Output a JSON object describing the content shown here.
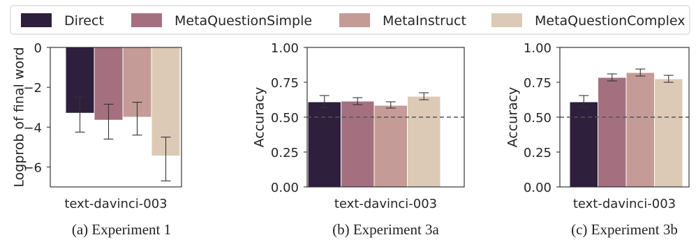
{
  "legend": [
    {
      "label": "Direct",
      "color": "#2e1f3d"
    },
    {
      "label": "MetaQuestionSimple",
      "color": "#a4707f"
    },
    {
      "label": "MetaInstruct",
      "color": "#c49b96"
    },
    {
      "label": "MetaQuestionComplex",
      "color": "#dccab7"
    }
  ],
  "chart_data": [
    {
      "type": "bar",
      "caption": "(a) Experiment 1",
      "categories": [
        "text-davinci-003"
      ],
      "ylabel": "Logprob of final word",
      "xlabel": "text-davinci-003",
      "ylim": [
        -7,
        0
      ],
      "yticks": [
        0,
        -2,
        -4,
        -6
      ],
      "ytick_labels": [
        "0",
        "−2",
        "−4",
        "−6"
      ],
      "grid": false,
      "series": [
        {
          "name": "Direct",
          "values": [
            -3.3
          ],
          "err_low": [
            -4.25
          ],
          "err_high": [
            -2.5
          ]
        },
        {
          "name": "MetaQuestionSimple",
          "values": [
            -3.65
          ],
          "err_low": [
            -4.6
          ],
          "err_high": [
            -2.85
          ]
        },
        {
          "name": "MetaInstruct",
          "values": [
            -3.5
          ],
          "err_low": [
            -4.4
          ],
          "err_high": [
            -2.75
          ]
        },
        {
          "name": "MetaQuestionComplex",
          "values": [
            -5.45
          ],
          "err_low": [
            -6.7
          ],
          "err_high": [
            -4.5
          ]
        }
      ]
    },
    {
      "type": "bar",
      "caption": "(b) Experiment 3a",
      "categories": [
        "text-davinci-003"
      ],
      "ylabel": "Accuracy",
      "xlabel": "text-davinci-003",
      "ylim": [
        0,
        1
      ],
      "yticks": [
        0,
        0.25,
        0.5,
        0.75,
        1
      ],
      "ytick_labels": [
        "0.00",
        "0.25",
        "0.50",
        "0.75",
        "1.00"
      ],
      "hline": 0.5,
      "grid": false,
      "series": [
        {
          "name": "Direct",
          "values": [
            0.61
          ],
          "err_low": [
            0.57
          ],
          "err_high": [
            0.655
          ]
        },
        {
          "name": "MetaQuestionSimple",
          "values": [
            0.615
          ],
          "err_low": [
            0.59
          ],
          "err_high": [
            0.64
          ]
        },
        {
          "name": "MetaInstruct",
          "values": [
            0.585
          ],
          "err_low": [
            0.565
          ],
          "err_high": [
            0.61
          ]
        },
        {
          "name": "MetaQuestionComplex",
          "values": [
            0.65
          ],
          "err_low": [
            0.625
          ],
          "err_high": [
            0.675
          ]
        }
      ]
    },
    {
      "type": "bar",
      "caption": "(c) Experiment 3b",
      "categories": [
        "text-davinci-003"
      ],
      "ylabel": "Accuracy",
      "xlabel": "text-davinci-003",
      "ylim": [
        0,
        1
      ],
      "yticks": [
        0,
        0.25,
        0.5,
        0.75,
        1
      ],
      "ytick_labels": [
        "0.00",
        "0.25",
        "0.50",
        "0.75",
        "1.00"
      ],
      "hline": 0.5,
      "grid": false,
      "series": [
        {
          "name": "Direct",
          "values": [
            0.61
          ],
          "err_low": [
            0.57
          ],
          "err_high": [
            0.655
          ]
        },
        {
          "name": "MetaQuestionSimple",
          "values": [
            0.785
          ],
          "err_low": [
            0.76
          ],
          "err_high": [
            0.81
          ]
        },
        {
          "name": "MetaInstruct",
          "values": [
            0.82
          ],
          "err_low": [
            0.795
          ],
          "err_high": [
            0.845
          ]
        },
        {
          "name": "MetaQuestionComplex",
          "values": [
            0.775
          ],
          "err_low": [
            0.75
          ],
          "err_high": [
            0.8
          ]
        }
      ]
    }
  ]
}
